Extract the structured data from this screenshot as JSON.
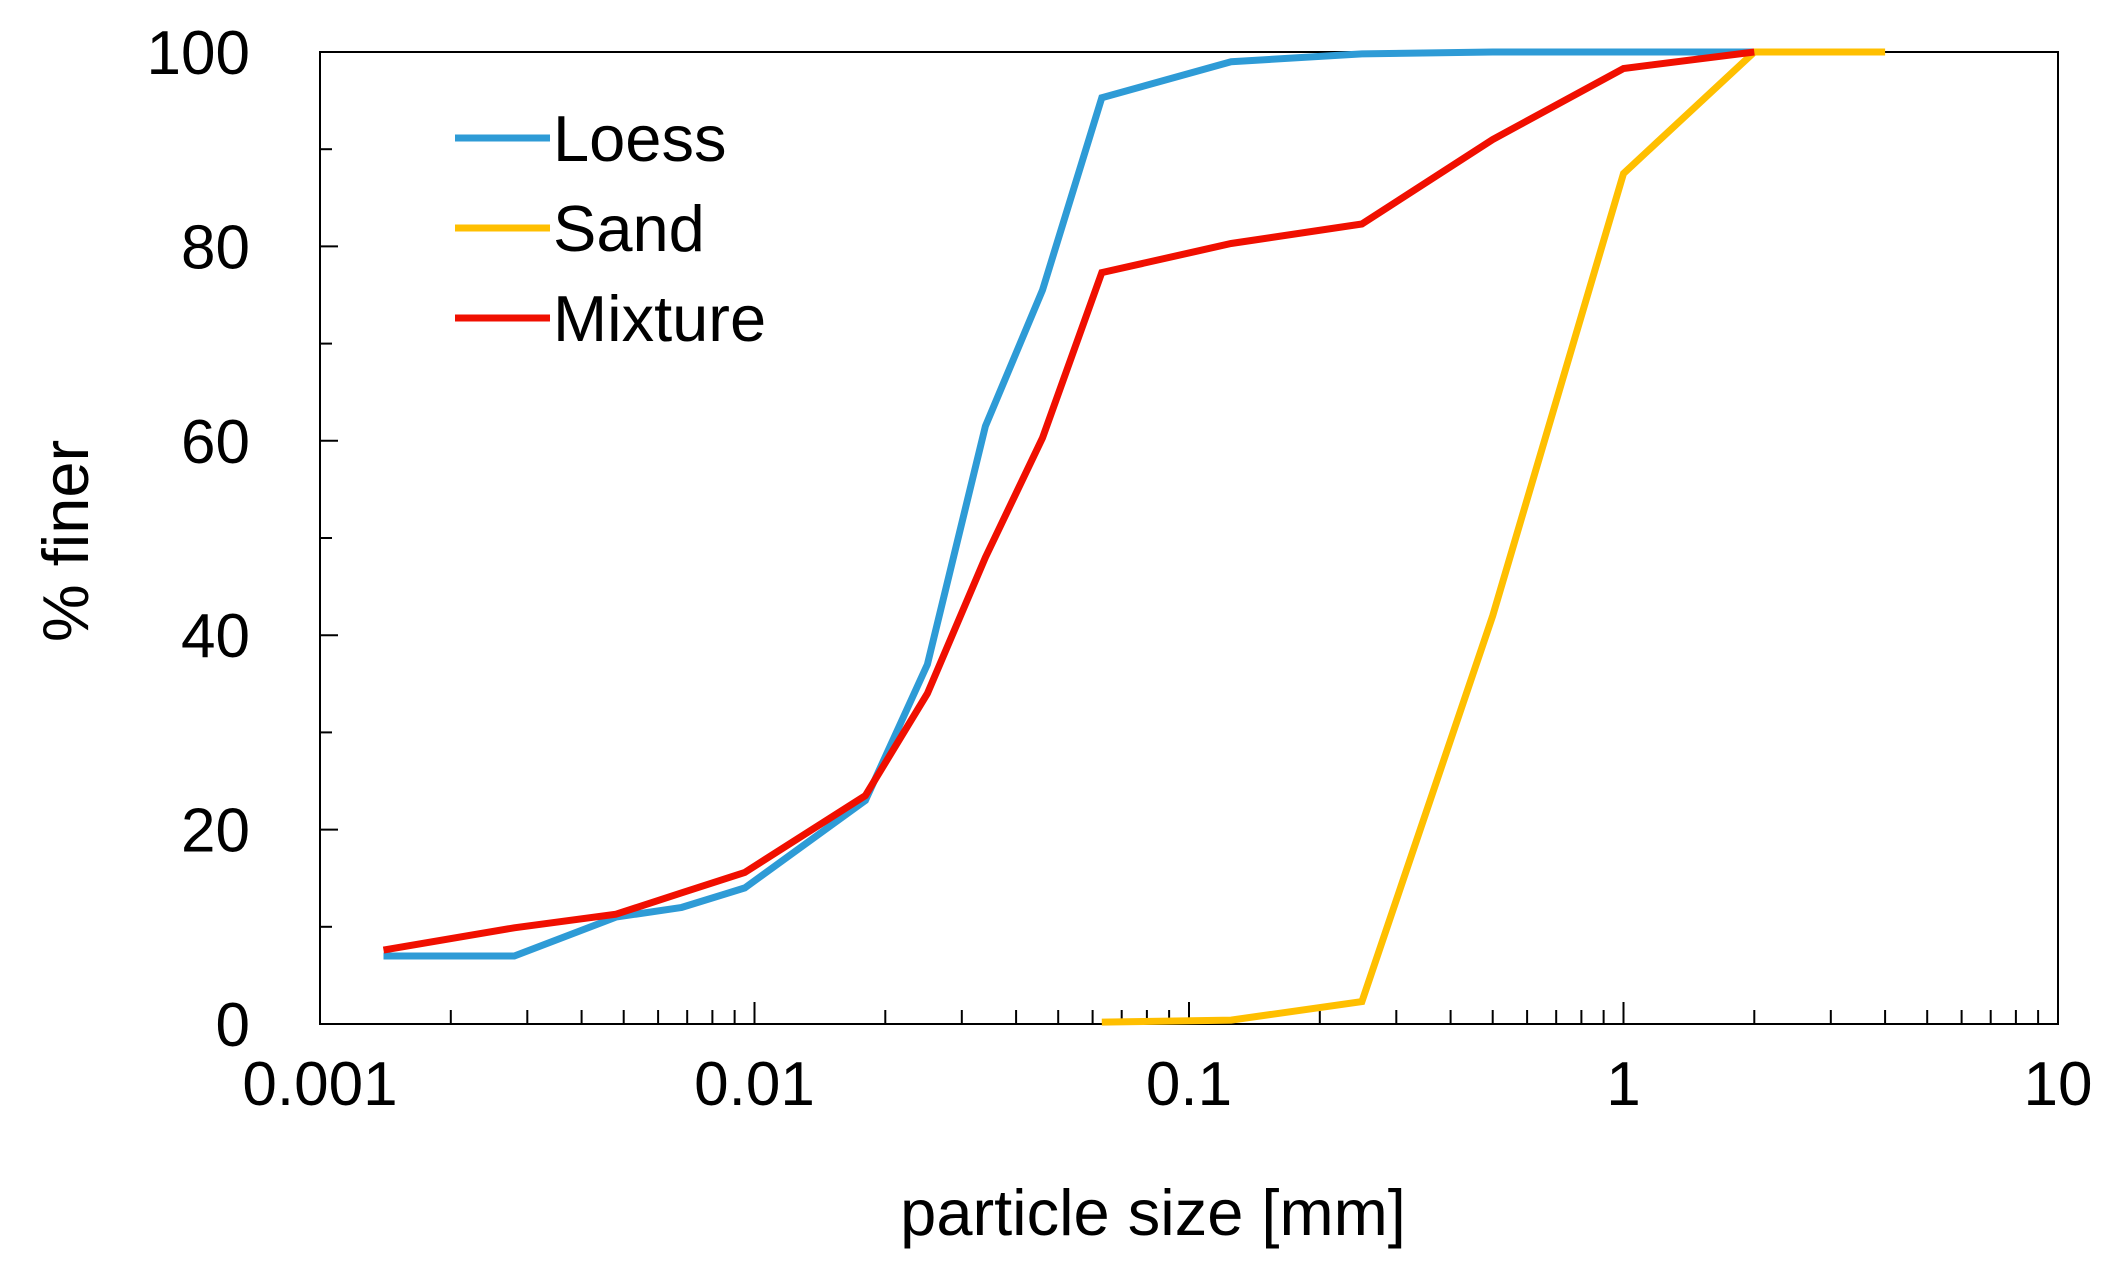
{
  "chart_data": {
    "type": "line",
    "title": "",
    "xlabel": "particle size [mm]",
    "ylabel": "% finer",
    "xscale": "log",
    "xlim": [
      0.001,
      10
    ],
    "ylim": [
      0,
      100
    ],
    "x_ticks": [
      0.001,
      0.01,
      0.1,
      1,
      10
    ],
    "x_tick_labels": [
      "0.001",
      "0.01",
      "0.1",
      "1",
      "10"
    ],
    "y_ticks": [
      0,
      20,
      40,
      60,
      80,
      100
    ],
    "y_tick_labels": [
      "0",
      "20",
      "40",
      "60",
      "80",
      "100"
    ],
    "y_minor_ticks": [
      10,
      30,
      50,
      70,
      90
    ],
    "grid": false,
    "legend_position": "top-left",
    "series": [
      {
        "name": "Loess",
        "color": "#2E9BD6",
        "x": [
          0.0014,
          0.0028,
          0.0048,
          0.0068,
          0.0095,
          0.018,
          0.025,
          0.034,
          0.046,
          0.063,
          0.125,
          0.25,
          0.5,
          1,
          2
        ],
        "y": [
          7,
          7,
          11,
          12,
          14,
          23,
          37,
          61.5,
          75.5,
          95.3,
          99,
          99.8,
          100,
          100,
          100
        ]
      },
      {
        "name": "Sand",
        "color": "#FFBF00",
        "x": [
          0.063,
          0.125,
          0.25,
          0.5,
          1,
          2,
          4
        ],
        "y": [
          0.2,
          0.4,
          2.3,
          42,
          87.5,
          100,
          100
        ]
      },
      {
        "name": "Mixture",
        "color": "#F00F00",
        "x": [
          0.0014,
          0.0028,
          0.0048,
          0.0068,
          0.0095,
          0.018,
          0.025,
          0.034,
          0.046,
          0.063,
          0.125,
          0.25,
          0.5,
          1,
          2
        ],
        "y": [
          7.6,
          9.9,
          11.3,
          13.5,
          15.6,
          23.5,
          34,
          48,
          60.3,
          77.3,
          80.3,
          82.3,
          91,
          98.3,
          100
        ]
      }
    ]
  }
}
